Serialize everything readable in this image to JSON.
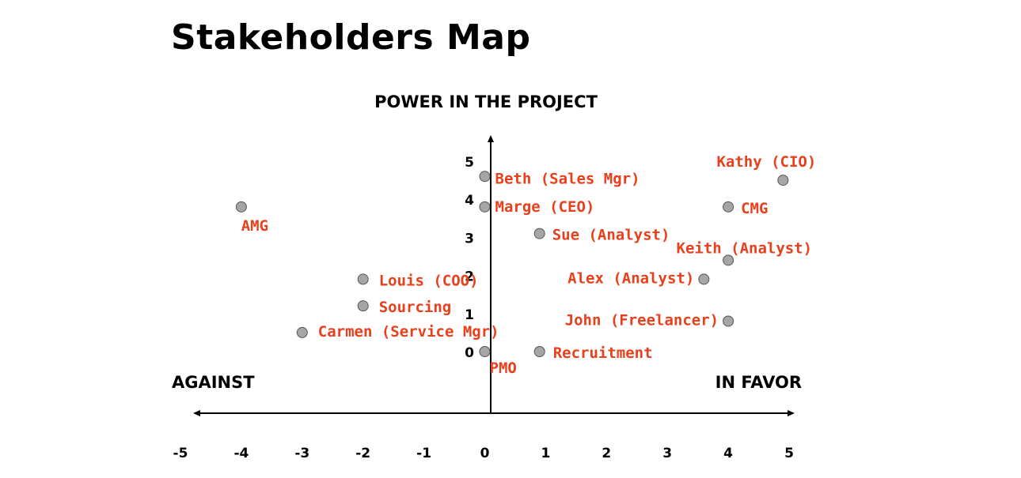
{
  "chart_data": {
    "type": "scatter",
    "title": "Stakeholders Map",
    "ylabel": "POWER IN THE PROJECT",
    "xlabel_left": "AGAINST",
    "xlabel_right": "IN FAVOR",
    "xlim": [
      -5,
      5
    ],
    "ylim": [
      0,
      5
    ],
    "x_ticks": [
      "-5",
      "-4",
      "-3",
      "-2",
      "-1",
      "0",
      "1",
      "2",
      "3",
      "4",
      "5"
    ],
    "y_ticks": [
      "0",
      "1",
      "2",
      "3",
      "4",
      "5"
    ],
    "grid": false,
    "marker_color": "#a6a6a6",
    "label_color": "#e8401c",
    "points": [
      {
        "label": "Beth (Sales Mgr)",
        "x": 0,
        "y": 4.6
      },
      {
        "label": "Marge (CEO)",
        "x": 0,
        "y": 3.8
      },
      {
        "label": "Kathy (CIO)",
        "x": 4.9,
        "y": 4.5
      },
      {
        "label": "CMG",
        "x": 4.0,
        "y": 3.8
      },
      {
        "label": "AMG",
        "x": -4.0,
        "y": 3.8
      },
      {
        "label": "Sue (Analyst)",
        "x": 0.9,
        "y": 3.1
      },
      {
        "label": "Keith (Analyst)",
        "x": 4.0,
        "y": 2.4
      },
      {
        "label": "Alex (Analyst)",
        "x": 3.6,
        "y": 1.9
      },
      {
        "label": "Louis (COO)",
        "x": -2.0,
        "y": 1.9
      },
      {
        "label": "Sourcing",
        "x": -2.0,
        "y": 1.2
      },
      {
        "label": "John (Freelancer)",
        "x": 4.0,
        "y": 0.8
      },
      {
        "label": "Carmen (Service Mgr)",
        "x": -3.0,
        "y": 0.5
      },
      {
        "label": "PMO",
        "x": 0,
        "y": 0
      },
      {
        "label": "Recruitment",
        "x": 0.9,
        "y": 0
      }
    ]
  }
}
